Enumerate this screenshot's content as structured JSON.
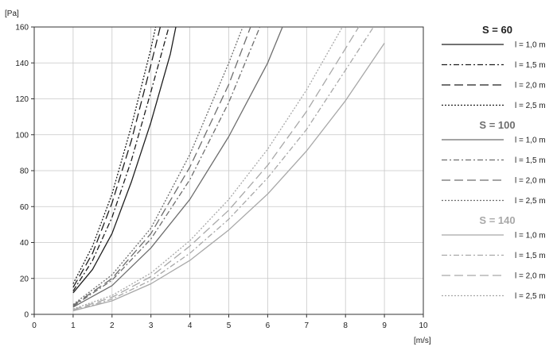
{
  "chart_data": {
    "type": "line",
    "y_unit": "[Pa]",
    "x_unit": "[m/s]",
    "xlim": [
      0,
      10
    ],
    "ylim": [
      0,
      160
    ],
    "x_ticks": [
      "0",
      "1",
      "2",
      "3",
      "4",
      "5",
      "6",
      "7",
      "8",
      "9",
      "10"
    ],
    "y_ticks": [
      "0",
      "20",
      "40",
      "60",
      "80",
      "100",
      "120",
      "140",
      "160"
    ],
    "grid": true,
    "legend_position": "right",
    "groups": [
      {
        "title": "S = 60",
        "color": "#1e1e1e",
        "series": [
          {
            "name": "l = 1,0 m",
            "dash": "solid",
            "points": [
              [
                1,
                12
              ],
              [
                1.5,
                25
              ],
              [
                2,
                45
              ],
              [
                2.5,
                74
              ],
              [
                3,
                107
              ],
              [
                3.5,
                145
              ],
              [
                3.64,
                160
              ]
            ]
          },
          {
            "name": "l = 1,5 m",
            "dash": "dashdot",
            "points": [
              [
                1,
                13
              ],
              [
                1.5,
                30
              ],
              [
                2,
                54
              ],
              [
                2.5,
                86
              ],
              [
                3,
                124
              ],
              [
                3.46,
                160
              ]
            ]
          },
          {
            "name": "l = 2,0 m",
            "dash": "longdash",
            "points": [
              [
                1,
                15
              ],
              [
                1.5,
                34
              ],
              [
                2,
                62
              ],
              [
                2.5,
                97
              ],
              [
                3,
                139
              ],
              [
                3.24,
                160
              ]
            ]
          },
          {
            "name": "l = 2,5 m",
            "dash": "dotted",
            "points": [
              [
                1,
                17
              ],
              [
                1.5,
                38
              ],
              [
                2,
                67
              ],
              [
                2.5,
                105
              ],
              [
                3,
                148
              ],
              [
                3.12,
                160
              ]
            ]
          }
        ]
      },
      {
        "title": "S = 100",
        "color": "#6e6e6e",
        "series": [
          {
            "name": "l = 1,0 m",
            "dash": "solid",
            "points": [
              [
                1,
                4
              ],
              [
                2,
                16
              ],
              [
                3,
                37
              ],
              [
                4,
                64
              ],
              [
                5,
                99
              ],
              [
                6,
                140
              ],
              [
                6.38,
                160
              ]
            ]
          },
          {
            "name": "l = 1,5 m",
            "dash": "dashdot",
            "points": [
              [
                1,
                4.5
              ],
              [
                2,
                19
              ],
              [
                3,
                42
              ],
              [
                4,
                75
              ],
              [
                5,
                118
              ],
              [
                5.8,
                160
              ]
            ]
          },
          {
            "name": "l = 2,0 m",
            "dash": "longdash",
            "points": [
              [
                1,
                5
              ],
              [
                2,
                20
              ],
              [
                3,
                45
              ],
              [
                4,
                82
              ],
              [
                5,
                128
              ],
              [
                5.56,
                160
              ]
            ]
          },
          {
            "name": "l = 2,5 m",
            "dash": "dotted",
            "points": [
              [
                1,
                5.5
              ],
              [
                2,
                22
              ],
              [
                3,
                48
              ],
              [
                4,
                89
              ],
              [
                5,
                140
              ],
              [
                5.36,
                160
              ]
            ]
          }
        ]
      },
      {
        "title": "S = 140",
        "color": "#a8a8a8",
        "series": [
          {
            "name": "l = 1,0 m",
            "dash": "solid",
            "points": [
              [
                1,
                2
              ],
              [
                2,
                7.5
              ],
              [
                3,
                17
              ],
              [
                4,
                30
              ],
              [
                5,
                47
              ],
              [
                6,
                67
              ],
              [
                7,
                91
              ],
              [
                8,
                119
              ],
              [
                9,
                151
              ]
            ]
          },
          {
            "name": "l = 1,5 m",
            "dash": "dashdot",
            "points": [
              [
                1,
                2
              ],
              [
                2,
                8.5
              ],
              [
                3,
                19
              ],
              [
                4,
                34
              ],
              [
                5,
                53
              ],
              [
                6,
                76
              ],
              [
                7,
                103
              ],
              [
                8,
                136
              ],
              [
                8.72,
                160
              ]
            ]
          },
          {
            "name": "l = 2,0 m",
            "dash": "longdash",
            "points": [
              [
                1,
                2.5
              ],
              [
                2,
                9.5
              ],
              [
                3,
                21
              ],
              [
                4,
                38
              ],
              [
                5,
                58
              ],
              [
                6,
                83
              ],
              [
                7,
                113
              ],
              [
                8,
                148
              ],
              [
                8.34,
                160
              ]
            ]
          },
          {
            "name": "l = 2,5 m",
            "dash": "dotted",
            "points": [
              [
                1,
                3
              ],
              [
                2,
                10.5
              ],
              [
                3,
                23
              ],
              [
                4,
                41
              ],
              [
                5,
                64
              ],
              [
                6,
                92
              ],
              [
                7,
                125
              ],
              [
                7.92,
                160
              ]
            ]
          }
        ]
      }
    ]
  }
}
